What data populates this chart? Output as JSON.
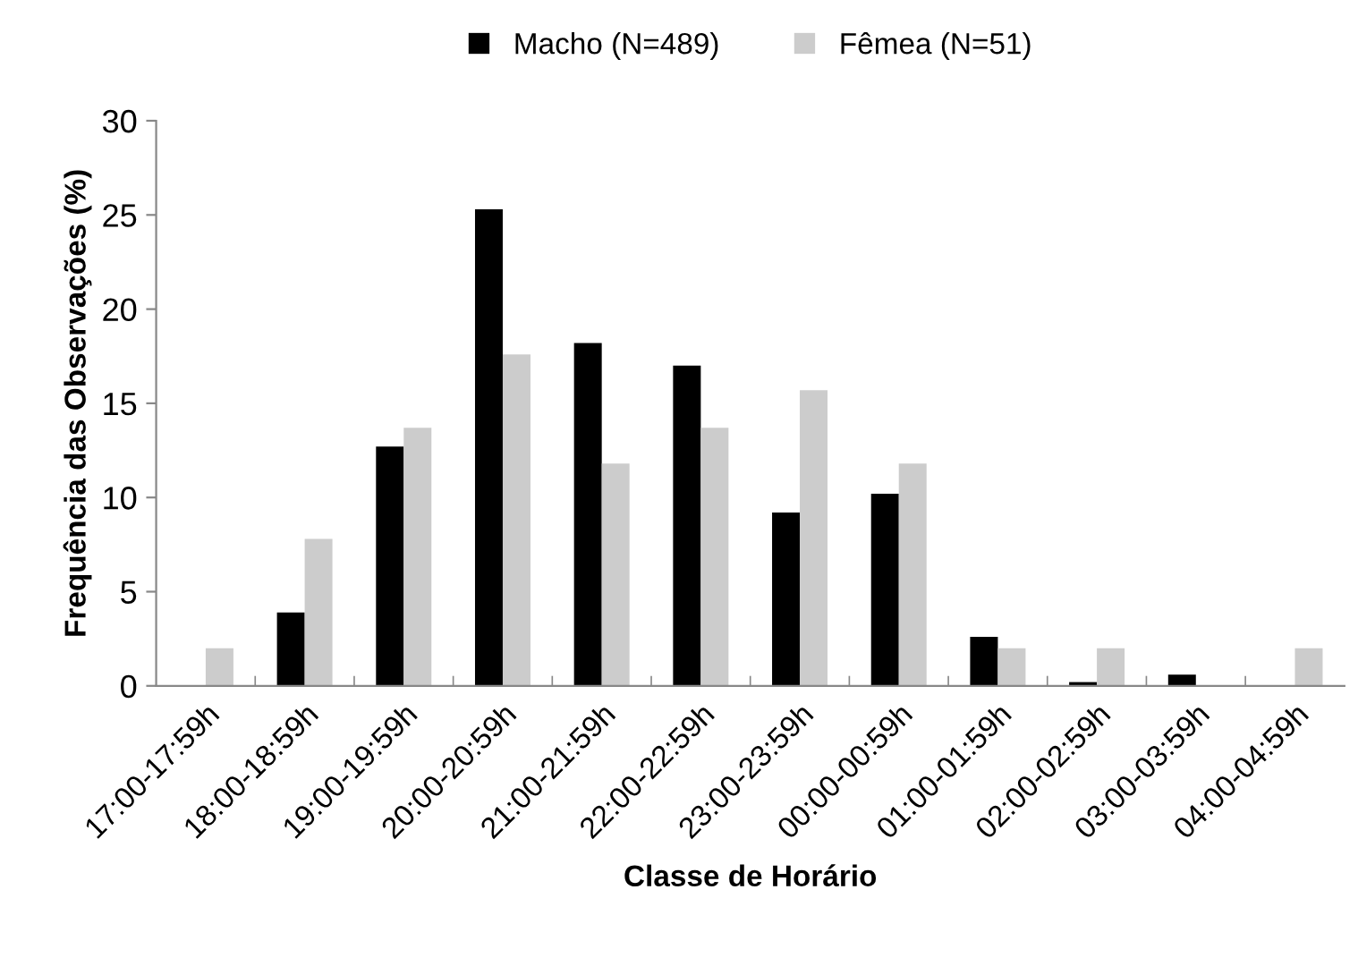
{
  "chart_data": {
    "type": "bar",
    "xlabel": "Classe de Horário",
    "ylabel": "Frequência das Observações (%)",
    "categories": [
      "17:00-17:59h",
      "18:00-18:59h",
      "19:00-19:59h",
      "20:00-20:59h",
      "21:00-21:59h",
      "22:00-22:59h",
      "23:00-23:59h",
      "00:00-00:59h",
      "01:00-01:59h",
      "02:00-02:59h",
      "03:00-03:59h",
      "04:00-04:59h"
    ],
    "series": [
      {
        "name": "Macho (N=489)",
        "color": "#000000",
        "values": [
          0,
          3.9,
          12.7,
          25.3,
          18.2,
          17.0,
          9.2,
          10.2,
          2.6,
          0.2,
          0.6,
          0
        ]
      },
      {
        "name": "Fêmea (N=51)",
        "color": "#cccccc",
        "values": [
          2.0,
          7.8,
          13.7,
          17.6,
          11.8,
          13.7,
          15.7,
          11.8,
          2.0,
          2.0,
          0,
          2.0
        ]
      }
    ],
    "ylim": [
      0,
      30
    ],
    "yticks": [
      0,
      5,
      10,
      15,
      20,
      25,
      30
    ],
    "grid": false,
    "legend": "top"
  }
}
